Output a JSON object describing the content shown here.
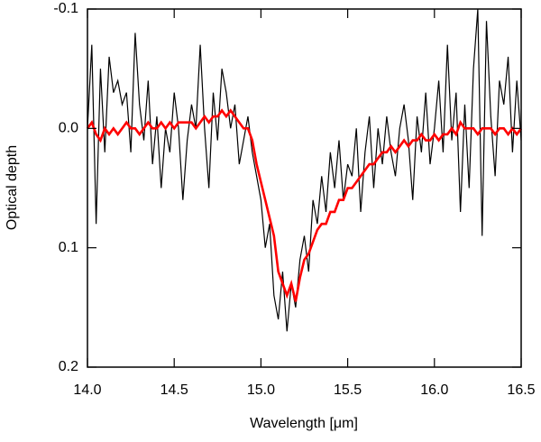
{
  "chart_data": {
    "type": "line",
    "xlabel": "Wavelength [μm]",
    "ylabel": "Optical depth",
    "x": [
      14.0,
      14.025,
      14.05,
      14.075,
      14.1,
      14.125,
      14.15,
      14.175,
      14.2,
      14.225,
      14.25,
      14.275,
      14.3,
      14.325,
      14.35,
      14.375,
      14.4,
      14.425,
      14.45,
      14.475,
      14.5,
      14.525,
      14.55,
      14.575,
      14.6,
      14.625,
      14.65,
      14.675,
      14.7,
      14.725,
      14.75,
      14.775,
      14.8,
      14.825,
      14.85,
      14.875,
      14.9,
      14.925,
      14.95,
      14.975,
      15.0,
      15.025,
      15.05,
      15.075,
      15.1,
      15.125,
      15.15,
      15.175,
      15.2,
      15.225,
      15.25,
      15.275,
      15.3,
      15.325,
      15.35,
      15.375,
      15.4,
      15.425,
      15.45,
      15.475,
      15.5,
      15.525,
      15.55,
      15.575,
      15.6,
      15.625,
      15.65,
      15.675,
      15.7,
      15.725,
      15.75,
      15.775,
      15.8,
      15.825,
      15.85,
      15.875,
      15.9,
      15.925,
      15.95,
      15.975,
      16.0,
      16.025,
      16.05,
      16.075,
      16.1,
      16.125,
      16.15,
      16.175,
      16.2,
      16.225,
      16.25,
      16.275,
      16.3,
      16.325,
      16.35,
      16.375,
      16.4,
      16.425,
      16.45,
      16.475,
      16.5
    ],
    "series": [
      {
        "color": "#000000",
        "width": 1.2,
        "values": [
          0.0,
          -0.07,
          0.08,
          -0.05,
          0.02,
          -0.06,
          -0.03,
          -0.04,
          -0.02,
          -0.03,
          0.02,
          -0.08,
          -0.02,
          0.01,
          -0.04,
          0.03,
          -0.01,
          0.05,
          0.0,
          0.02,
          -0.03,
          0.0,
          0.06,
          0.01,
          -0.02,
          0.0,
          -0.07,
          0.0,
          0.05,
          -0.03,
          0.01,
          -0.05,
          -0.03,
          0.0,
          -0.02,
          0.03,
          0.01,
          -0.01,
          0.02,
          0.04,
          0.06,
          0.1,
          0.08,
          0.14,
          0.16,
          0.12,
          0.17,
          0.13,
          0.15,
          0.11,
          0.09,
          0.12,
          0.06,
          0.08,
          0.04,
          0.07,
          0.02,
          0.05,
          0.01,
          0.06,
          0.03,
          0.04,
          0.0,
          0.07,
          0.02,
          -0.01,
          0.05,
          0.0,
          0.03,
          -0.01,
          0.02,
          0.04,
          0.0,
          -0.02,
          0.01,
          0.06,
          -0.01,
          0.02,
          -0.03,
          0.03,
          0.0,
          -0.04,
          0.02,
          -0.07,
          0.01,
          -0.03,
          0.07,
          -0.02,
          0.05,
          -0.05,
          -0.1,
          0.09,
          -0.09,
          -0.01,
          0.04,
          -0.04,
          -0.02,
          -0.06,
          0.02,
          -0.04,
          0.01
        ]
      },
      {
        "color": "#ff0000",
        "width": 2.6,
        "values": [
          0.0,
          -0.005,
          0.005,
          0.01,
          0.0,
          0.005,
          0.0,
          0.005,
          0.0,
          -0.005,
          0.0,
          0.0,
          0.005,
          0.0,
          -0.005,
          0.0,
          0.0,
          -0.005,
          0.0,
          -0.005,
          0.0,
          -0.005,
          -0.005,
          -0.005,
          -0.005,
          0.0,
          -0.005,
          -0.01,
          -0.005,
          -0.01,
          -0.01,
          -0.015,
          -0.01,
          -0.015,
          -0.01,
          -0.005,
          0.0,
          0.0,
          0.01,
          0.03,
          0.045,
          0.06,
          0.075,
          0.09,
          0.12,
          0.13,
          0.14,
          0.13,
          0.145,
          0.125,
          0.11,
          0.105,
          0.095,
          0.085,
          0.08,
          0.08,
          0.07,
          0.07,
          0.06,
          0.06,
          0.05,
          0.05,
          0.045,
          0.04,
          0.035,
          0.03,
          0.03,
          0.025,
          0.02,
          0.02,
          0.015,
          0.02,
          0.015,
          0.01,
          0.015,
          0.01,
          0.01,
          0.005,
          0.01,
          0.01,
          0.005,
          0.01,
          0.005,
          0.005,
          0.0,
          0.005,
          -0.005,
          0.0,
          0.0,
          0.0,
          0.005,
          0.0,
          0.0,
          0.0,
          0.005,
          0.0,
          0.0,
          0.005,
          0.0,
          0.005,
          0.0
        ]
      }
    ],
    "xlim": [
      14.0,
      16.5
    ],
    "xticks": [
      {
        "value": 14,
        "label": "14.0"
      },
      14.5,
      {
        "value": 15,
        "label": "15.0"
      },
      15.5,
      {
        "value": 16,
        "label": "16.0"
      },
      16.5
    ],
    "ylim": [
      -0.1,
      0.2
    ],
    "yticks": [
      -0.1,
      {
        "value": 0,
        "label": "0.0"
      },
      0.1,
      0.2
    ],
    "yinvert": true,
    "grid": false
  }
}
